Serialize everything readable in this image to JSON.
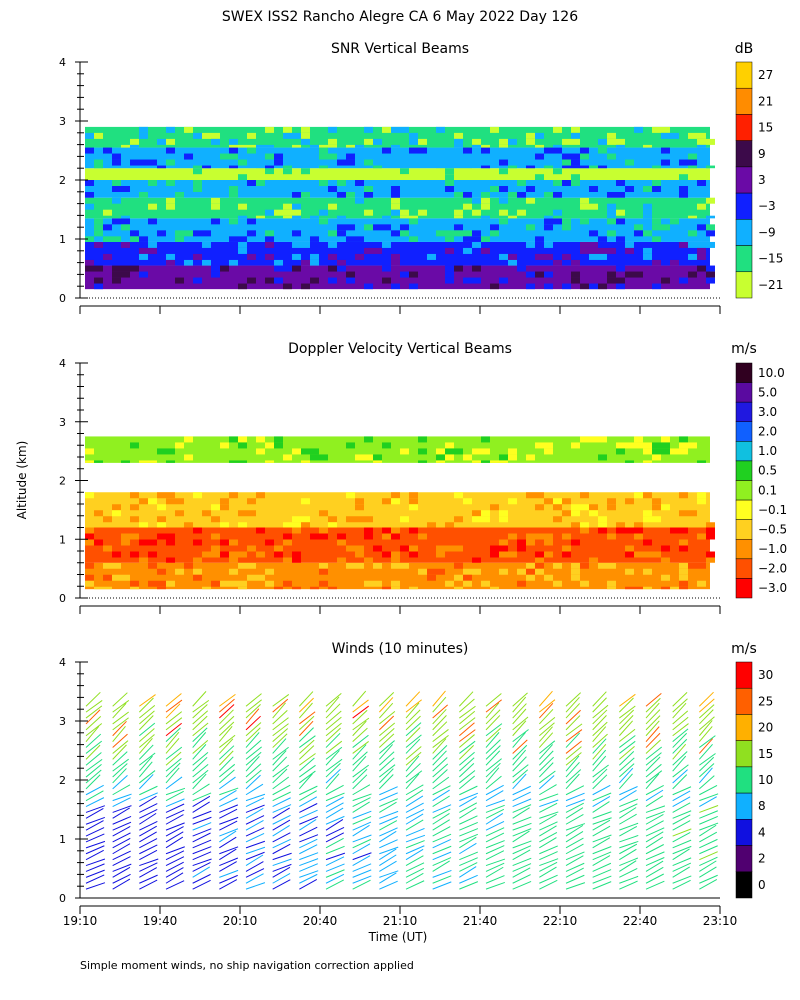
{
  "title": "SWEX ISS2 Rancho Alegre CA   6 May 2022 Day 126",
  "footnote": "Simple moment winds, no ship navigation correction applied",
  "shared_axes": {
    "ylabel": "Altitude (km)",
    "xlabel": "Time (UT)",
    "yticks": [
      0,
      1,
      2,
      3,
      4
    ],
    "xticks": [
      "19:10",
      "19:40",
      "20:10",
      "20:40",
      "21:10",
      "21:40",
      "22:10",
      "22:40",
      "23:10"
    ],
    "xlim": [
      "19:10",
      "23:10"
    ],
    "ylim": [
      0,
      4
    ]
  },
  "chart_data": [
    {
      "type": "heatmap",
      "title": "SNR Vertical Beams",
      "colorbar": {
        "unit": "dB",
        "labels": [
          "27",
          "21",
          "15",
          "9",
          "3",
          "−3",
          "−9",
          "−15",
          "−21"
        ],
        "colors": [
          "#ffd000",
          "#ff8c00",
          "#ff2000",
          "#3c0a4a",
          "#6a0aa6",
          "#1020ff",
          "#10b0ff",
          "#20e080",
          "#c8ff30"
        ]
      },
      "bands": [
        {
          "y": [
            0.15,
            0.55
          ],
          "level": "3"
        },
        {
          "y": [
            0.55,
            0.95
          ],
          "level": "-3"
        },
        {
          "y": [
            0.95,
            1.35
          ],
          "level": "-9"
        },
        {
          "y": [
            1.35,
            1.7
          ],
          "level": "-15"
        },
        {
          "y": [
            1.7,
            2.0
          ],
          "level": "-9"
        },
        {
          "y": [
            2.0,
            2.2
          ],
          "level": "-21"
        },
        {
          "y": [
            2.2,
            2.55
          ],
          "level": "-9"
        },
        {
          "y": [
            2.55,
            2.9
          ],
          "level": "-15"
        }
      ]
    },
    {
      "type": "heatmap",
      "title": "Doppler Velocity Vertical Beams",
      "colorbar": {
        "unit": "m/s",
        "labels": [
          "10.0",
          "5.0",
          "3.0",
          "2.0",
          "1.0",
          "0.5",
          "0.1",
          "−0.1",
          "−0.5",
          "−1.0",
          "−2.0",
          "−3.0"
        ],
        "colors": [
          "#300020",
          "#5a0aa0",
          "#2018e0",
          "#1060ff",
          "#10c0e0",
          "#20d020",
          "#90f020",
          "#ffff20",
          "#ffd020",
          "#ff9000",
          "#ff5000",
          "#ff0000"
        ]
      },
      "bands": [
        {
          "y": [
            0.15,
            0.6
          ],
          "level": "-1.0"
        },
        {
          "y": [
            0.6,
            1.2
          ],
          "level": "-2.0"
        },
        {
          "y": [
            1.2,
            1.8
          ],
          "level": "-0.5"
        },
        {
          "y": [
            2.3,
            2.75
          ],
          "level": "0.1"
        }
      ]
    },
    {
      "type": "wind_barbs",
      "title": "Winds (10 minutes)",
      "colorbar": {
        "unit": "m/s",
        "labels": [
          "30",
          "25",
          "20",
          "15",
          "10",
          "8",
          "4",
          "2",
          "0"
        ],
        "colors": [
          "#ff0000",
          "#ff6000",
          "#ffb000",
          "#90e020",
          "#20e080",
          "#10b0ff",
          "#1010e0",
          "#500070",
          "#000000"
        ]
      },
      "profile_times": [
        "19:10",
        "19:20",
        "19:30",
        "19:40",
        "19:50",
        "20:00",
        "20:10",
        "20:20",
        "20:30",
        "20:40",
        "20:50",
        "21:00",
        "21:10",
        "21:20",
        "21:30",
        "21:40",
        "21:50",
        "22:00",
        "22:10",
        "22:20",
        "22:30",
        "22:40",
        "22:50",
        "23:00"
      ],
      "altitude_range_km": [
        0.15,
        3.3
      ]
    }
  ]
}
